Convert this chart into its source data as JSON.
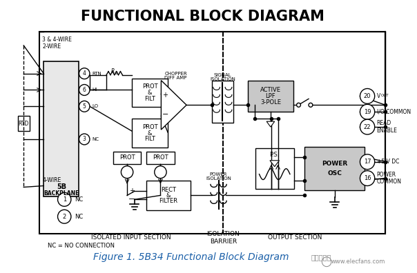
{
  "title": "FUNCTIONAL BLOCK DIAGRAM",
  "title_fontsize": 15,
  "title_fontweight": "bold",
  "caption": "Figure 1. 5B34 Functional Block Diagram",
  "caption_fontsize": 10,
  "bg_color": "#ffffff",
  "line_color": "#000000",
  "fig_width": 6.04,
  "fig_height": 3.96,
  "watermark": "www.elecfans.com",
  "watermark_color": "#888888",
  "caption_color": "#1a5fa8",
  "gray_box": "#c8c8c8"
}
